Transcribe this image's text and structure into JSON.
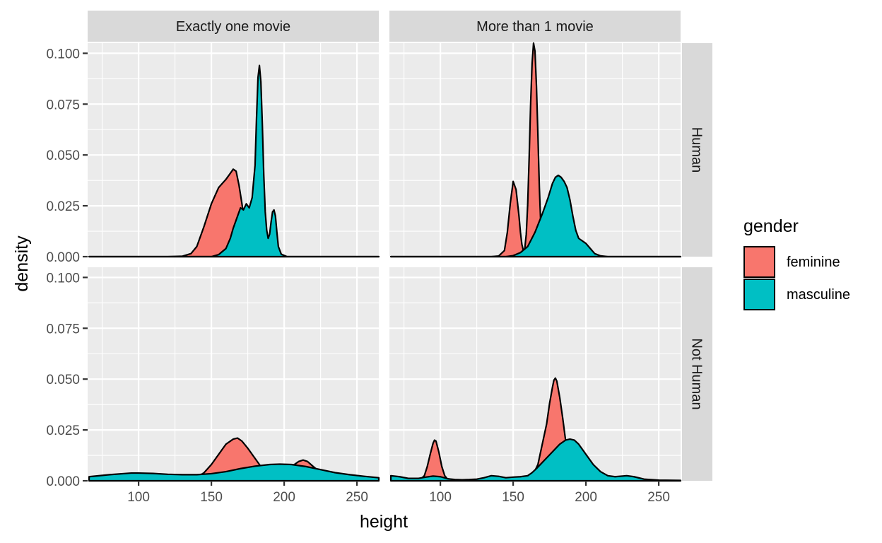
{
  "chart_data": {
    "type": "area",
    "subtype": "density",
    "facet_cols": [
      "Exactly one movie",
      "More than 1 movie"
    ],
    "facet_rows": [
      "Human",
      "Not Human"
    ],
    "xlabel": "height",
    "ylabel": "density",
    "xlim": [
      65,
      265
    ],
    "ylim": [
      0,
      0.105
    ],
    "x_ticks": [
      100,
      150,
      200,
      250
    ],
    "x_tick_labels": [
      "100",
      "150",
      "200",
      "250"
    ],
    "y_ticks": [
      0,
      0.025,
      0.05,
      0.075,
      0.1
    ],
    "y_tick_labels": [
      "0.000",
      "0.025",
      "0.050",
      "0.075",
      "0.100"
    ],
    "grid": true,
    "legend": {
      "title": "gender",
      "position": "right",
      "items": [
        {
          "label": "feminine",
          "color": "#F8766D"
        },
        {
          "label": "masculine",
          "color": "#00BFC4"
        }
      ]
    },
    "panels": [
      {
        "col": 0,
        "row": 0,
        "series": [
          {
            "name": "feminine",
            "color": "#F8766D",
            "points": [
              [
                66,
                0
              ],
              [
                120,
                0
              ],
              [
                130,
                0.0002
              ],
              [
                136,
                0.0015
              ],
              [
                140,
                0.005
              ],
              [
                145,
                0.015
              ],
              [
                150,
                0.026
              ],
              [
                155,
                0.034
              ],
              [
                160,
                0.038
              ],
              [
                163,
                0.041
              ],
              [
                165,
                0.043
              ],
              [
                167,
                0.042
              ],
              [
                169,
                0.035
              ],
              [
                171,
                0.026
              ],
              [
                173,
                0.016
              ],
              [
                175,
                0.008
              ],
              [
                177,
                0.003
              ],
              [
                180,
                0.0008
              ],
              [
                184,
                0
              ],
              [
                265,
                0
              ]
            ]
          },
          {
            "name": "masculine",
            "color": "#00BFC4",
            "points": [
              [
                66,
                0
              ],
              [
                150,
                0
              ],
              [
                155,
                0.001
              ],
              [
                160,
                0.004
              ],
              [
                163,
                0.009
              ],
              [
                165,
                0.014
              ],
              [
                167,
                0.018
              ],
              [
                169,
                0.022
              ],
              [
                170,
                0.024
              ],
              [
                172,
                0.023
              ],
              [
                174,
                0.026
              ],
              [
                176,
                0.024
              ],
              [
                178,
                0.029
              ],
              [
                180,
                0.045
              ],
              [
                181,
                0.068
              ],
              [
                182,
                0.088
              ],
              [
                183,
                0.094
              ],
              [
                184,
                0.086
              ],
              [
                185,
                0.065
              ],
              [
                186,
                0.04
              ],
              [
                187,
                0.022
              ],
              [
                188,
                0.013
              ],
              [
                189,
                0.009
              ],
              [
                190,
                0.011
              ],
              [
                191,
                0.017
              ],
              [
                192,
                0.022
              ],
              [
                193,
                0.023
              ],
              [
                194,
                0.02
              ],
              [
                195,
                0.012
              ],
              [
                196,
                0.005
              ],
              [
                198,
                0.0012
              ],
              [
                202,
                0
              ],
              [
                265,
                0
              ]
            ]
          }
        ]
      },
      {
        "col": 1,
        "row": 0,
        "series": [
          {
            "name": "feminine",
            "color": "#F8766D",
            "points": [
              [
                66,
                0
              ],
              [
                135,
                0
              ],
              [
                140,
                0.0003
              ],
              [
                144,
                0.003
              ],
              [
                146,
                0.012
              ],
              [
                148,
                0.026
              ],
              [
                150,
                0.037
              ],
              [
                152,
                0.033
              ],
              [
                154,
                0.02
              ],
              [
                155,
                0.012
              ],
              [
                156,
                0.006
              ],
              [
                157,
                0.003
              ],
              [
                158,
                0.004
              ],
              [
                159,
                0.011
              ],
              [
                160,
                0.026
              ],
              [
                161,
                0.049
              ],
              [
                162,
                0.075
              ],
              [
                163,
                0.095
              ],
              [
                164,
                0.105
              ],
              [
                165,
                0.101
              ],
              [
                166,
                0.084
              ],
              [
                167,
                0.06
              ],
              [
                168,
                0.034
              ],
              [
                169,
                0.015
              ],
              [
                170,
                0.005
              ],
              [
                172,
                0.0008
              ],
              [
                175,
                0
              ],
              [
                265,
                0
              ]
            ]
          },
          {
            "name": "masculine",
            "color": "#00BFC4",
            "points": [
              [
                66,
                0
              ],
              [
                145,
                0
              ],
              [
                150,
                0.0005
              ],
              [
                155,
                0.002
              ],
              [
                160,
                0.005
              ],
              [
                165,
                0.012
              ],
              [
                170,
                0.021
              ],
              [
                174,
                0.029
              ],
              [
                177,
                0.036
              ],
              [
                179,
                0.039
              ],
              [
                181,
                0.04
              ],
              [
                183,
                0.039
              ],
              [
                185,
                0.037
              ],
              [
                187,
                0.034
              ],
              [
                189,
                0.028
              ],
              [
                191,
                0.02
              ],
              [
                193,
                0.013
              ],
              [
                195,
                0.009
              ],
              [
                197,
                0.008
              ],
              [
                200,
                0.0065
              ],
              [
                203,
                0.004
              ],
              [
                206,
                0.0015
              ],
              [
                210,
                0.0004
              ],
              [
                215,
                0
              ],
              [
                265,
                0
              ]
            ]
          }
        ]
      },
      {
        "col": 0,
        "row": 1,
        "series": [
          {
            "name": "feminine",
            "color": "#F8766D",
            "points": [
              [
                66,
                0
              ],
              [
                130,
                0
              ],
              [
                138,
                0.0008
              ],
              [
                145,
                0.004
              ],
              [
                150,
                0.008
              ],
              [
                155,
                0.013
              ],
              [
                160,
                0.018
              ],
              [
                165,
                0.0205
              ],
              [
                168,
                0.021
              ],
              [
                171,
                0.0195
              ],
              [
                175,
                0.016
              ],
              [
                180,
                0.011
              ],
              [
                185,
                0.006
              ],
              [
                190,
                0.0035
              ],
              [
                195,
                0.003
              ],
              [
                200,
                0.004
              ],
              [
                205,
                0.007
              ],
              [
                210,
                0.0095
              ],
              [
                213,
                0.0102
              ],
              [
                216,
                0.0095
              ],
              [
                220,
                0.007
              ],
              [
                225,
                0.004
              ],
              [
                230,
                0.0015
              ],
              [
                235,
                0.0005
              ],
              [
                240,
                0
              ],
              [
                265,
                0
              ]
            ]
          },
          {
            "name": "masculine",
            "color": "#00BFC4",
            "points": [
              [
                66,
                0.002
              ],
              [
                80,
                0.003
              ],
              [
                95,
                0.0038
              ],
              [
                100,
                0.0038
              ],
              [
                110,
                0.0036
              ],
              [
                120,
                0.0032
              ],
              [
                130,
                0.003
              ],
              [
                140,
                0.003
              ],
              [
                150,
                0.0035
              ],
              [
                160,
                0.0045
              ],
              [
                170,
                0.006
              ],
              [
                180,
                0.0072
              ],
              [
                190,
                0.008
              ],
              [
                197,
                0.0082
              ],
              [
                205,
                0.008
              ],
              [
                215,
                0.007
              ],
              [
                225,
                0.0055
              ],
              [
                235,
                0.004
              ],
              [
                245,
                0.003
              ],
              [
                255,
                0.0022
              ],
              [
                265,
                0.0015
              ]
            ]
          }
        ]
      },
      {
        "col": 1,
        "row": 1,
        "series": [
          {
            "name": "feminine",
            "color": "#F8766D",
            "points": [
              [
                66,
                0
              ],
              [
                80,
                0
              ],
              [
                86,
                0.0005
              ],
              [
                89,
                0.0025
              ],
              [
                91,
                0.007
              ],
              [
                93,
                0.013
              ],
              [
                95,
                0.0185
              ],
              [
                96,
                0.02
              ],
              [
                97,
                0.0195
              ],
              [
                99,
                0.014
              ],
              [
                101,
                0.007
              ],
              [
                103,
                0.0025
              ],
              [
                105,
                0.0007
              ],
              [
                108,
                0
              ],
              [
                150,
                0
              ],
              [
                158,
                0.0005
              ],
              [
                163,
                0.002
              ],
              [
                167,
                0.008
              ],
              [
                170,
                0.018
              ],
              [
                173,
                0.028
              ],
              [
                175,
                0.038
              ],
              [
                177,
                0.046
              ],
              [
                178,
                0.0495
              ],
              [
                179,
                0.0505
              ],
              [
                180,
                0.049
              ],
              [
                182,
                0.041
              ],
              [
                184,
                0.031
              ],
              [
                186,
                0.02
              ],
              [
                188,
                0.01
              ],
              [
                190,
                0.004
              ],
              [
                193,
                0.001
              ],
              [
                197,
                0
              ],
              [
                265,
                0
              ]
            ]
          },
          {
            "name": "masculine",
            "color": "#00BFC4",
            "points": [
              [
                66,
                0.0025
              ],
              [
                72,
                0.002
              ],
              [
                78,
                0.0012
              ],
              [
                85,
                0.0012
              ],
              [
                90,
                0.0018
              ],
              [
                95,
                0.0023
              ],
              [
                100,
                0.002
              ],
              [
                105,
                0.001
              ],
              [
                110,
                0.0006
              ],
              [
                115,
                0.0005
              ],
              [
                120,
                0.0006
              ],
              [
                125,
                0.0008
              ],
              [
                130,
                0.0015
              ],
              [
                135,
                0.0025
              ],
              [
                140,
                0.0022
              ],
              [
                145,
                0.0015
              ],
              [
                150,
                0.0018
              ],
              [
                155,
                0.002
              ],
              [
                160,
                0.0025
              ],
              [
                163,
                0.004
              ],
              [
                166,
                0.006
              ],
              [
                170,
                0.009
              ],
              [
                174,
                0.012
              ],
              [
                178,
                0.015
              ],
              [
                182,
                0.018
              ],
              [
                186,
                0.02
              ],
              [
                189,
                0.0205
              ],
              [
                192,
                0.02
              ],
              [
                195,
                0.018
              ],
              [
                200,
                0.013
              ],
              [
                205,
                0.008
              ],
              [
                210,
                0.0045
              ],
              [
                215,
                0.0025
              ],
              [
                220,
                0.002
              ],
              [
                228,
                0.0025
              ],
              [
                233,
                0.002
              ],
              [
                240,
                0.0008
              ],
              [
                250,
                0.0003
              ],
              [
                265,
                0.0002
              ]
            ]
          }
        ]
      }
    ]
  }
}
